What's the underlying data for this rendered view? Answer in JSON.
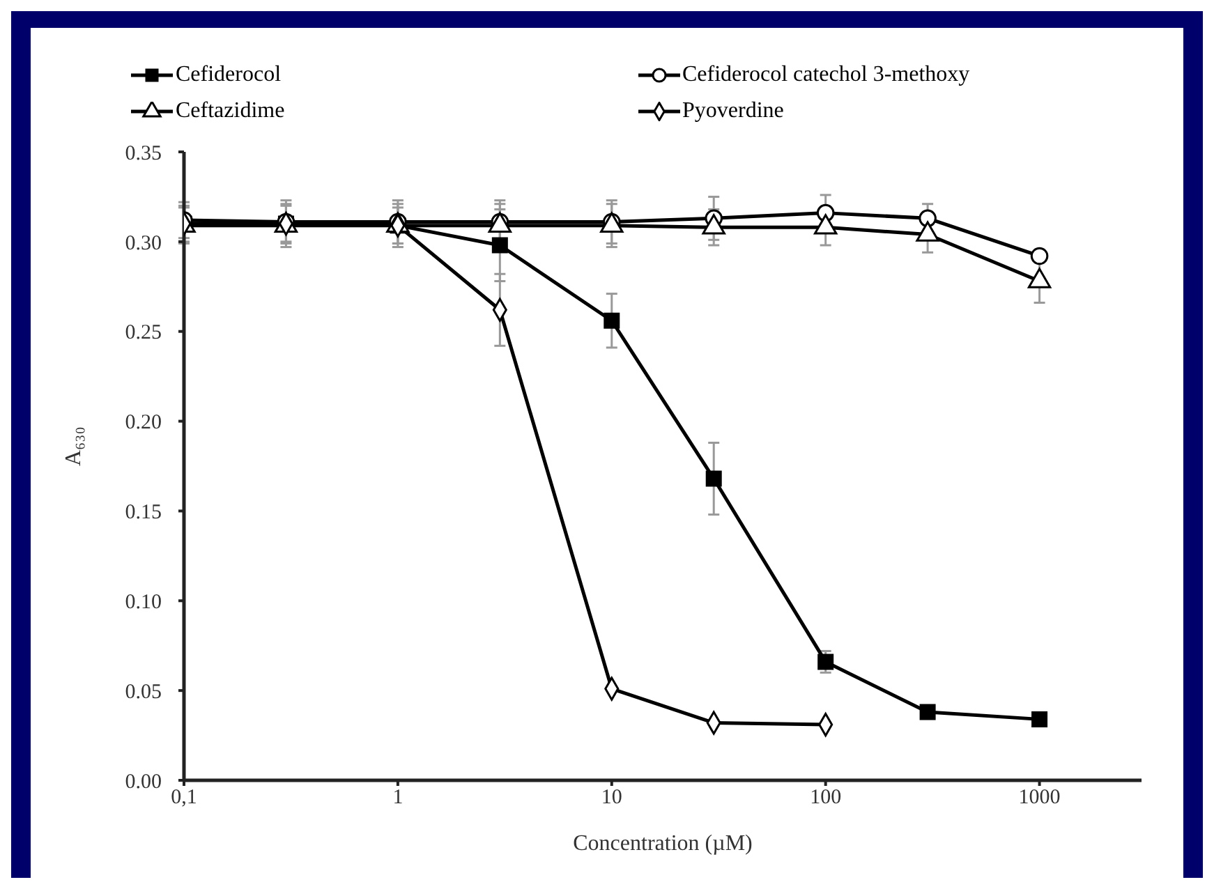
{
  "chart_data": {
    "type": "line",
    "xlabel": "Concentration (µM)",
    "ylabel": "A₆₃₀",
    "log": "x",
    "xlim": [
      0.1,
      3000
    ],
    "xticks": [
      {
        "value": 0.1,
        "label": "0,1"
      },
      1,
      10,
      100,
      1000
    ],
    "ylim": [
      0,
      0.35
    ],
    "yticks": [
      {
        "value": 0,
        "label": "0.00"
      },
      0.05,
      {
        "value": 0.1,
        "label": "0.10"
      },
      0.15,
      {
        "value": 0.2,
        "label": "0.20"
      },
      0.25,
      {
        "value": 0.3,
        "label": "0.30"
      },
      0.35
    ],
    "grid": false,
    "legend": "top",
    "line_style": "solid",
    "series": [
      {
        "name": "Cefiderocol",
        "color": "#000000",
        "marker": "square",
        "x": [
          0.1,
          0.3,
          1,
          3,
          10,
          30,
          100,
          300,
          1000
        ],
        "values": [
          0.31,
          0.31,
          0.309,
          0.298,
          0.256,
          0.168,
          0.066,
          0.038,
          0.034
        ],
        "errors": [
          0.01,
          0.01,
          0.01,
          0.02,
          0.015,
          0.02,
          0.006,
          null,
          null
        ]
      },
      {
        "name": "Cefiderocol catechol 3-methoxy",
        "color": "#000000",
        "marker": "circle",
        "x": [
          0.1,
          0.3,
          1,
          3,
          10,
          30,
          100,
          300,
          1000
        ],
        "values": [
          0.312,
          0.311,
          0.311,
          0.311,
          0.311,
          0.313,
          0.316,
          0.313,
          0.292
        ],
        "errors": [
          0.01,
          0.012,
          0.012,
          0.012,
          0.012,
          0.012,
          0.01,
          0.008,
          null
        ]
      },
      {
        "name": "Ceftazidime",
        "color": "#000000",
        "marker": "triangle",
        "x": [
          0.1,
          0.3,
          1,
          3,
          10,
          30,
          100,
          300,
          1000
        ],
        "values": [
          0.309,
          0.309,
          0.309,
          0.309,
          0.309,
          0.308,
          0.308,
          0.304,
          0.278
        ],
        "errors": [
          0.01,
          0.012,
          0.012,
          0.012,
          0.012,
          0.01,
          0.01,
          0.01,
          0.012
        ]
      },
      {
        "name": "Pyoverdine",
        "color": "#000000",
        "marker": "diamond",
        "x": [
          0.1,
          0.3,
          1,
          3,
          10,
          30,
          100
        ],
        "values": [
          0.31,
          0.31,
          0.309,
          0.262,
          0.051,
          0.032,
          0.031
        ],
        "errors": [
          null,
          null,
          null,
          0.02,
          null,
          null,
          null
        ]
      }
    ]
  }
}
